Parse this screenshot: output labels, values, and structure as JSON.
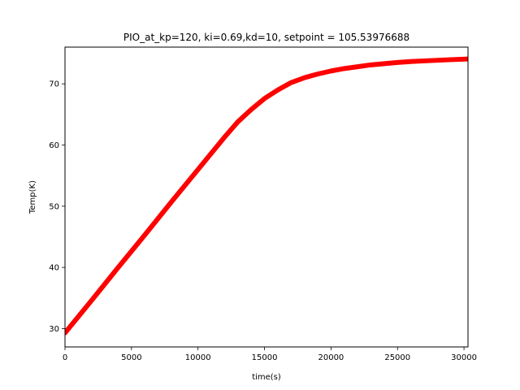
{
  "chart_data": {
    "type": "line",
    "title": "PIO_at_kp=120, ki=0.69,kd=10, setpoint = 105.53976688",
    "xlabel": "time(s)",
    "ylabel": "Temp(K)",
    "xlim": [
      0,
      30300
    ],
    "ylim": [
      27,
      76
    ],
    "x_ticks": [
      0,
      5000,
      10000,
      15000,
      20000,
      25000,
      30000
    ],
    "y_ticks": [
      30,
      40,
      50,
      60,
      70
    ],
    "grid": false,
    "series": [
      {
        "color": "#ff0000",
        "x": [
          0,
          2000,
          4000,
          6000,
          8000,
          10000,
          12000,
          13000,
          14000,
          15000,
          16000,
          17000,
          18000,
          19000,
          20000,
          21000,
          22000,
          23000,
          24000,
          25000,
          26000,
          27000,
          28000,
          29000,
          30300
        ],
        "y": [
          29.3,
          34.6,
          40.0,
          45.3,
          50.7,
          56.0,
          61.3,
          63.8,
          65.8,
          67.6,
          69.0,
          70.2,
          71.0,
          71.6,
          72.1,
          72.5,
          72.8,
          73.1,
          73.3,
          73.5,
          73.65,
          73.75,
          73.85,
          73.95,
          74.05
        ]
      }
    ]
  }
}
